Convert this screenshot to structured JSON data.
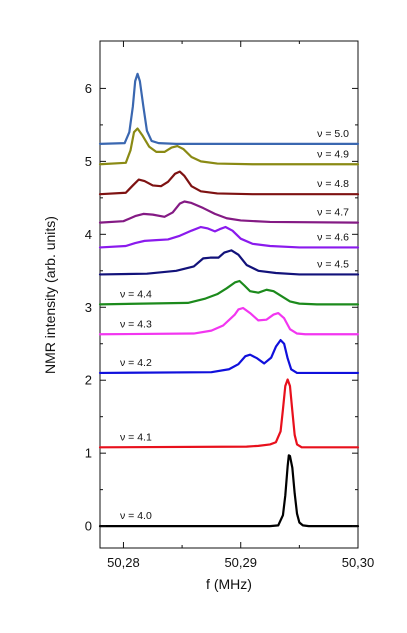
{
  "chart_data": {
    "type": "line",
    "title": "",
    "xlabel": "f (MHz)",
    "ylabel": "NMR intensity (arb. units)",
    "xlim": [
      50.278,
      50.3
    ],
    "ylim": [
      -0.3,
      6.65
    ],
    "x_ticks": [
      50.28,
      50.29,
      50.3
    ],
    "x_tick_labels": [
      "50,28",
      "50,29",
      "50,30"
    ],
    "y_ticks": [
      0,
      1,
      2,
      3,
      4,
      5,
      6
    ],
    "y_tick_labels": [
      "0",
      "1",
      "2",
      "3",
      "4",
      "5",
      "6"
    ],
    "grid": false,
    "legend": "none",
    "series": [
      {
        "name": "ν = 4.0",
        "color": "#000000",
        "offset": 0.0,
        "label_side": "left",
        "points": [
          [
            50.278,
            0
          ],
          [
            50.2925,
            0
          ],
          [
            50.2932,
            0.01
          ],
          [
            50.2936,
            0.15
          ],
          [
            50.2938,
            0.42
          ],
          [
            50.294,
            0.82
          ],
          [
            50.2941,
            0.97
          ],
          [
            50.2942,
            0.96
          ],
          [
            50.2944,
            0.8
          ],
          [
            50.2946,
            0.45
          ],
          [
            50.2948,
            0.17
          ],
          [
            50.295,
            0.05
          ],
          [
            50.2953,
            0.01
          ],
          [
            50.2958,
            0
          ],
          [
            50.3,
            0
          ]
        ]
      },
      {
        "name": "ν = 4.1",
        "color": "#e8101c",
        "offset": 1.08,
        "label_side": "left",
        "points": [
          [
            50.278,
            1.08
          ],
          [
            50.2905,
            1.09
          ],
          [
            50.2915,
            1.1
          ],
          [
            50.2925,
            1.12
          ],
          [
            50.293,
            1.15
          ],
          [
            50.2934,
            1.3
          ],
          [
            50.2936,
            1.6
          ],
          [
            50.2938,
            1.92
          ],
          [
            50.294,
            2.01
          ],
          [
            50.2942,
            1.92
          ],
          [
            50.2944,
            1.58
          ],
          [
            50.2946,
            1.25
          ],
          [
            50.2948,
            1.12
          ],
          [
            50.2952,
            1.08
          ],
          [
            50.3,
            1.08
          ]
        ]
      },
      {
        "name": "ν = 4.2",
        "color": "#1010dc",
        "offset": 2.1,
        "label_side": "left",
        "points": [
          [
            50.278,
            2.1
          ],
          [
            50.2875,
            2.11
          ],
          [
            50.289,
            2.15
          ],
          [
            50.2898,
            2.22
          ],
          [
            50.2904,
            2.33
          ],
          [
            50.2908,
            2.35
          ],
          [
            50.2914,
            2.3
          ],
          [
            50.292,
            2.23
          ],
          [
            50.2926,
            2.31
          ],
          [
            50.293,
            2.46
          ],
          [
            50.2934,
            2.55
          ],
          [
            50.2937,
            2.5
          ],
          [
            50.294,
            2.3
          ],
          [
            50.2943,
            2.15
          ],
          [
            50.2948,
            2.1
          ],
          [
            50.3,
            2.1
          ]
        ]
      },
      {
        "name": "ν = 4.3",
        "color": "#f236f0",
        "offset": 2.63,
        "label_side": "left",
        "points": [
          [
            50.278,
            2.63
          ],
          [
            50.286,
            2.64
          ],
          [
            50.2875,
            2.68
          ],
          [
            50.2885,
            2.75
          ],
          [
            50.2895,
            2.9
          ],
          [
            50.2898,
            2.97
          ],
          [
            50.2902,
            2.99
          ],
          [
            50.2908,
            2.92
          ],
          [
            50.2915,
            2.82
          ],
          [
            50.2922,
            2.83
          ],
          [
            50.2928,
            2.9
          ],
          [
            50.2932,
            2.92
          ],
          [
            50.2937,
            2.85
          ],
          [
            50.2942,
            2.7
          ],
          [
            50.2948,
            2.64
          ],
          [
            50.2955,
            2.63
          ],
          [
            50.3,
            2.63
          ]
        ]
      },
      {
        "name": "ν = 4.4",
        "color": "#1c8a1c",
        "offset": 3.04,
        "label_side": "left",
        "points": [
          [
            50.278,
            3.04
          ],
          [
            50.2855,
            3.06
          ],
          [
            50.287,
            3.12
          ],
          [
            50.288,
            3.18
          ],
          [
            50.2888,
            3.26
          ],
          [
            50.2895,
            3.34
          ],
          [
            50.2899,
            3.36
          ],
          [
            50.2903,
            3.3
          ],
          [
            50.2908,
            3.22
          ],
          [
            50.2915,
            3.2
          ],
          [
            50.2922,
            3.24
          ],
          [
            50.2928,
            3.22
          ],
          [
            50.2935,
            3.15
          ],
          [
            50.2942,
            3.08
          ],
          [
            50.295,
            3.05
          ],
          [
            50.2965,
            3.04
          ],
          [
            50.3,
            3.04
          ]
        ]
      },
      {
        "name": "ν = 4.5",
        "color": "#12127a",
        "offset": 3.45,
        "label_side": "right",
        "points": [
          [
            50.278,
            3.45
          ],
          [
            50.282,
            3.46
          ],
          [
            50.2845,
            3.5
          ],
          [
            50.286,
            3.56
          ],
          [
            50.2868,
            3.67
          ],
          [
            50.2874,
            3.68
          ],
          [
            50.2881,
            3.68
          ],
          [
            50.2886,
            3.75
          ],
          [
            50.2892,
            3.78
          ],
          [
            50.2898,
            3.72
          ],
          [
            50.2905,
            3.58
          ],
          [
            50.2915,
            3.5
          ],
          [
            50.293,
            3.47
          ],
          [
            50.295,
            3.45
          ],
          [
            50.3,
            3.45
          ]
        ]
      },
      {
        "name": "ν = 4.6",
        "color": "#8a1aed",
        "offset": 3.82,
        "label_side": "right",
        "points": [
          [
            50.278,
            3.82
          ],
          [
            50.2802,
            3.84
          ],
          [
            50.281,
            3.88
          ],
          [
            50.2818,
            3.91
          ],
          [
            50.2828,
            3.92
          ],
          [
            50.2838,
            3.93
          ],
          [
            50.2848,
            3.98
          ],
          [
            50.2858,
            4.05
          ],
          [
            50.2866,
            4.1
          ],
          [
            50.2872,
            4.08
          ],
          [
            50.2878,
            4.04
          ],
          [
            50.2882,
            4.07
          ],
          [
            50.2887,
            4.1
          ],
          [
            50.2893,
            4.05
          ],
          [
            50.29,
            3.94
          ],
          [
            50.291,
            3.87
          ],
          [
            50.2925,
            3.84
          ],
          [
            50.295,
            3.82
          ],
          [
            50.3,
            3.82
          ]
        ]
      },
      {
        "name": "ν = 4.7",
        "color": "#841a84",
        "offset": 4.16,
        "label_side": "right",
        "points": [
          [
            50.278,
            4.16
          ],
          [
            50.28,
            4.18
          ],
          [
            50.281,
            4.25
          ],
          [
            50.2817,
            4.28
          ],
          [
            50.2825,
            4.27
          ],
          [
            50.2835,
            4.24
          ],
          [
            50.2842,
            4.3
          ],
          [
            50.2848,
            4.42
          ],
          [
            50.2852,
            4.45
          ],
          [
            50.2858,
            4.43
          ],
          [
            50.2868,
            4.36
          ],
          [
            50.2878,
            4.28
          ],
          [
            50.2888,
            4.22
          ],
          [
            50.29,
            4.19
          ],
          [
            50.2925,
            4.17
          ],
          [
            50.3,
            4.16
          ]
        ]
      },
      {
        "name": "ν = 4.8",
        "color": "#7e1212",
        "offset": 4.55,
        "label_side": "right",
        "points": [
          [
            50.278,
            4.55
          ],
          [
            50.2802,
            4.57
          ],
          [
            50.2808,
            4.67
          ],
          [
            50.2813,
            4.75
          ],
          [
            50.2818,
            4.73
          ],
          [
            50.2825,
            4.67
          ],
          [
            50.2832,
            4.66
          ],
          [
            50.2838,
            4.72
          ],
          [
            50.2844,
            4.83
          ],
          [
            50.2848,
            4.86
          ],
          [
            50.2852,
            4.8
          ],
          [
            50.2858,
            4.66
          ],
          [
            50.2866,
            4.59
          ],
          [
            50.288,
            4.56
          ],
          [
            50.291,
            4.55
          ],
          [
            50.3,
            4.55
          ]
        ]
      },
      {
        "name": "ν = 4.9",
        "color": "#8a8a14",
        "offset": 4.96,
        "label_side": "right",
        "points": [
          [
            50.278,
            4.96
          ],
          [
            50.2802,
            4.98
          ],
          [
            50.2806,
            5.15
          ],
          [
            50.2809,
            5.4
          ],
          [
            50.2812,
            5.45
          ],
          [
            50.2816,
            5.36
          ],
          [
            50.2822,
            5.2
          ],
          [
            50.2828,
            5.13
          ],
          [
            50.2835,
            5.13
          ],
          [
            50.2841,
            5.19
          ],
          [
            50.2846,
            5.21
          ],
          [
            50.2851,
            5.17
          ],
          [
            50.2858,
            5.06
          ],
          [
            50.2866,
            5.0
          ],
          [
            50.288,
            4.97
          ],
          [
            50.291,
            4.96
          ],
          [
            50.3,
            4.96
          ]
        ]
      },
      {
        "name": "ν = 5.0",
        "color": "#3a67b0",
        "offset": 5.24,
        "label_side": "right",
        "points": [
          [
            50.278,
            5.24
          ],
          [
            50.2801,
            5.25
          ],
          [
            50.2805,
            5.4
          ],
          [
            50.2808,
            5.75
          ],
          [
            50.281,
            6.1
          ],
          [
            50.2812,
            6.2
          ],
          [
            50.2814,
            6.1
          ],
          [
            50.2817,
            5.75
          ],
          [
            50.282,
            5.42
          ],
          [
            50.2824,
            5.28
          ],
          [
            50.283,
            5.25
          ],
          [
            50.2845,
            5.24
          ],
          [
            50.3,
            5.24
          ]
        ]
      }
    ]
  }
}
